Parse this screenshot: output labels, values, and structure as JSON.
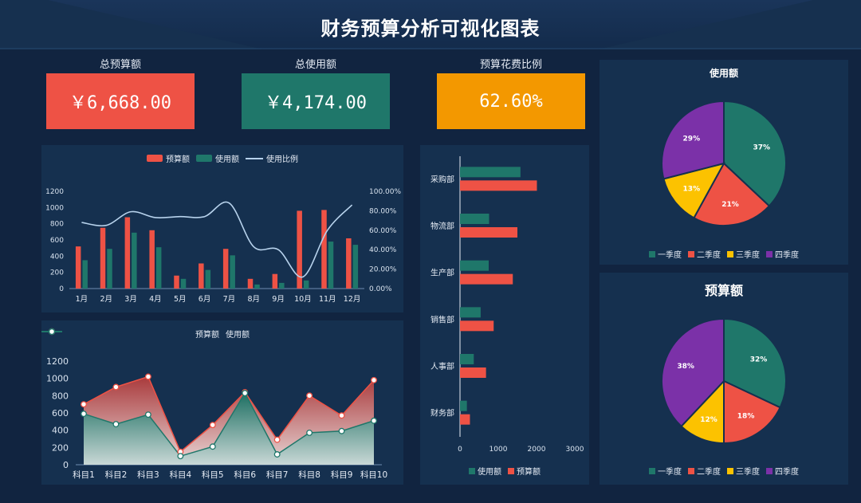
{
  "title": "财务预算分析可视化图表",
  "colors": {
    "budget": "#ee5245",
    "usage": "#1f776a",
    "ratio": "#b7d2ec",
    "percent_box": "#f39800",
    "q1": "#1f776a",
    "q2": "#ee5245",
    "q3": "#fcc200",
    "q4": "#7b31a8"
  },
  "kpis": [
    {
      "label": "总预算额",
      "value": "￥6,668.00",
      "color": "#ee5245"
    },
    {
      "label": "总使用额",
      "value": "￥4,174.00",
      "color": "#1f776a"
    },
    {
      "label": "预算花费比例",
      "value": "62.60%",
      "color": "#f39800"
    }
  ],
  "chart_data": [
    {
      "type": "bar",
      "legend": [
        "预算额",
        "使用额",
        "使用比例"
      ],
      "categories": [
        "1月",
        "2月",
        "3月",
        "4月",
        "5月",
        "6月",
        "7月",
        "8月",
        "9月",
        "10月",
        "11月",
        "12月"
      ],
      "series": [
        {
          "name": "预算额",
          "type": "bar",
          "values": [
            520,
            750,
            880,
            720,
            160,
            310,
            490,
            120,
            180,
            960,
            970,
            620
          ]
        },
        {
          "name": "使用额",
          "type": "bar",
          "values": [
            350,
            490,
            690,
            510,
            120,
            230,
            410,
            50,
            70,
            100,
            580,
            540
          ]
        },
        {
          "name": "使用比例",
          "type": "line",
          "axis": "right",
          "values": [
            68,
            65,
            79,
            73,
            74,
            74,
            88,
            43,
            40,
            12,
            60,
            86
          ]
        }
      ],
      "ylim": [
        0,
        1200
      ],
      "yticks": [
        "1200",
        "1000",
        "800",
        "600",
        "400",
        "200",
        "0"
      ],
      "y2lim": [
        0,
        100
      ],
      "y2ticks": [
        "100.00%",
        "80.00%",
        "60.00%",
        "40.00%",
        "20.00%",
        "0.00%"
      ],
      "legend_position": "top"
    },
    {
      "type": "area",
      "legend": [
        "预算额",
        "使用额"
      ],
      "categories": [
        "科目1",
        "科目2",
        "科目3",
        "科目4",
        "科目5",
        "科目6",
        "科目7",
        "科目8",
        "科目9",
        "科目10"
      ],
      "series": [
        {
          "name": "预算额",
          "values": [
            700,
            900,
            1020,
            150,
            460,
            840,
            290,
            800,
            570,
            980
          ]
        },
        {
          "name": "使用额",
          "values": [
            590,
            470,
            580,
            100,
            210,
            830,
            120,
            370,
            390,
            510
          ]
        }
      ],
      "ylim": [
        0,
        1200
      ],
      "yticks": [
        "1200",
        "1000",
        "800",
        "600",
        "400",
        "200",
        "0"
      ],
      "legend_position": "top"
    },
    {
      "type": "bar",
      "orientation": "horizontal",
      "categories": [
        "采购部",
        "物流部",
        "生产部",
        "销售部",
        "人事部",
        "财务部"
      ],
      "series": [
        {
          "name": "使用额",
          "values": [
            1580,
            760,
            750,
            540,
            360,
            180
          ]
        },
        {
          "name": "预算额",
          "values": [
            2010,
            1500,
            1380,
            880,
            680,
            260
          ]
        }
      ],
      "xlim": [
        0,
        3000
      ],
      "xticks": [
        "0",
        "1000",
        "2000",
        "3000"
      ],
      "legend": [
        "使用额",
        "预算额"
      ],
      "legend_position": "bottom"
    },
    {
      "type": "pie",
      "title": "使用额",
      "labels": [
        "一季度",
        "二季度",
        "三季度",
        "四季度"
      ],
      "values": [
        37,
        21,
        13,
        29
      ],
      "value_labels": [
        "37%",
        "21%",
        "13%",
        "29%"
      ],
      "legend_position": "bottom"
    },
    {
      "type": "pie",
      "title": "预算额",
      "labels": [
        "一季度",
        "二季度",
        "三季度",
        "四季度"
      ],
      "values": [
        32,
        18,
        12,
        38
      ],
      "value_labels": [
        "32%",
        "18%",
        "12%",
        "38%"
      ],
      "legend_position": "bottom"
    }
  ]
}
